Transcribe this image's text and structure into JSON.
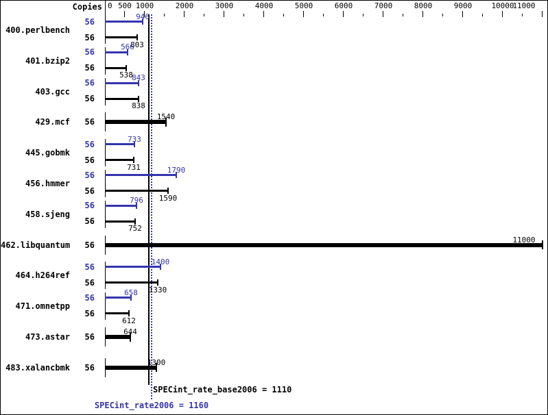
{
  "chart_data": {
    "type": "bar",
    "orientation": "horizontal",
    "title": "",
    "copies_header": "Copies",
    "axis": {
      "min": 0,
      "max": 11150,
      "labeled_ticks": [
        0,
        500,
        1000,
        2000,
        3000,
        4000,
        5000,
        6000,
        7000,
        8000,
        9000,
        10000,
        11000
      ],
      "minor_ticks": [
        1500,
        2500,
        3500,
        4500,
        5500,
        6500,
        7500,
        8500,
        9500,
        10500
      ],
      "grid": false
    },
    "series_colors": {
      "peak": "#3434ad",
      "base": "#000000"
    },
    "legend": {
      "peak_meaning": "peak (blue)",
      "base_meaning": "base (black)"
    },
    "benchmarks": [
      {
        "name": "400.perlbench",
        "rows": [
          {
            "kind": "peak",
            "copies": "56",
            "value": 946
          },
          {
            "kind": "base",
            "copies": "56",
            "value": 803
          }
        ]
      },
      {
        "name": "401.bzip2",
        "rows": [
          {
            "kind": "peak",
            "copies": "56",
            "value": 566
          },
          {
            "kind": "base",
            "copies": "56",
            "value": 538
          }
        ]
      },
      {
        "name": "403.gcc",
        "rows": [
          {
            "kind": "peak",
            "copies": "56",
            "value": 843
          },
          {
            "kind": "base",
            "copies": "56",
            "value": 838
          }
        ]
      },
      {
        "name": "429.mcf",
        "rows": [
          {
            "kind": "single",
            "copies": "56",
            "value": 1540
          }
        ]
      },
      {
        "name": "445.gobmk",
        "rows": [
          {
            "kind": "peak",
            "copies": "56",
            "value": 733
          },
          {
            "kind": "base",
            "copies": "56",
            "value": 731
          }
        ]
      },
      {
        "name": "456.hmmer",
        "rows": [
          {
            "kind": "peak",
            "copies": "56",
            "value": 1790
          },
          {
            "kind": "base",
            "copies": "56",
            "value": 1590
          }
        ]
      },
      {
        "name": "458.sjeng",
        "rows": [
          {
            "kind": "peak",
            "copies": "56",
            "value": 796
          },
          {
            "kind": "base",
            "copies": "56",
            "value": 752
          }
        ]
      },
      {
        "name": "462.libquantum",
        "rows": [
          {
            "kind": "single",
            "copies": "56",
            "value": 11000
          }
        ]
      },
      {
        "name": "464.h264ref",
        "rows": [
          {
            "kind": "peak",
            "copies": "56",
            "value": 1400
          },
          {
            "kind": "base",
            "copies": "56",
            "value": 1330
          }
        ]
      },
      {
        "name": "471.omnetpp",
        "rows": [
          {
            "kind": "peak",
            "copies": "56",
            "value": 658
          },
          {
            "kind": "base",
            "copies": "56",
            "value": 612
          }
        ]
      },
      {
        "name": "473.astar",
        "rows": [
          {
            "kind": "single",
            "copies": "56",
            "value": 644
          }
        ]
      },
      {
        "name": "483.xalancbmk",
        "rows": [
          {
            "kind": "single",
            "copies": "56",
            "value": 1300
          }
        ]
      }
    ],
    "reference_lines": [
      {
        "kind": "base",
        "value": 1110,
        "style": "solid",
        "color": "#000000",
        "label": "SPECint_rate_base2006 = 1110"
      },
      {
        "kind": "peak",
        "value": 1160,
        "style": "dotted",
        "color": "#3434ad",
        "label": "SPECint_rate2006 = 1160"
      }
    ]
  }
}
